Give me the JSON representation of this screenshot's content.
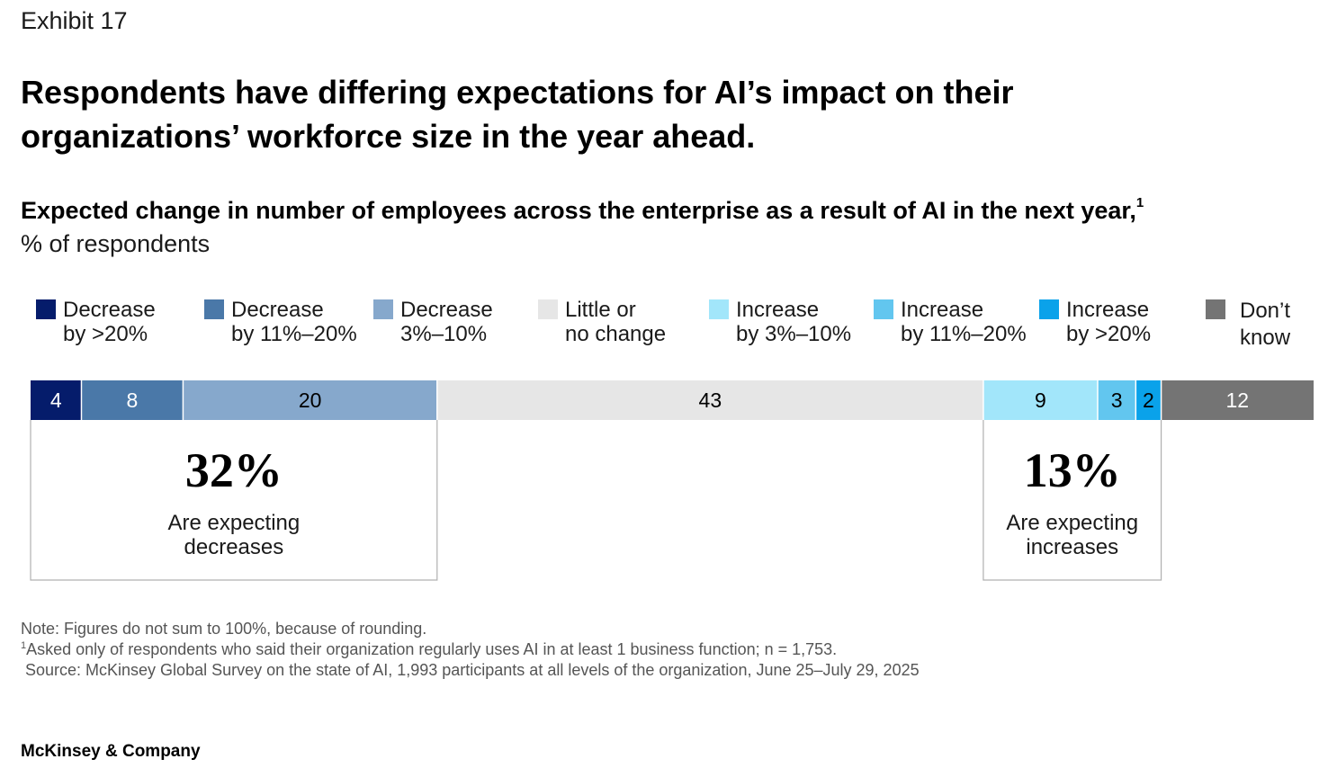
{
  "header": {
    "exhibit": "Exhibit 17",
    "title": "Respondents have differing expectations for AI’s impact on their organizations’ workforce size in the year ahead.",
    "subtitle": "Expected change in number of employees across the enterprise as a result of AI in the next year,",
    "subtitle_footnote": "1",
    "unit": "% of respondents"
  },
  "chart_data": {
    "type": "bar",
    "orientation": "horizontal-stacked",
    "title": "Expected change in number of employees across the enterprise as a result of AI in the next year",
    "ylabel": "% of respondents",
    "series": [
      {
        "name": "Decrease by >20%",
        "label": "Decrease\nby >20%",
        "value": 4,
        "color": "#051c6b",
        "text_color": "#ffffff"
      },
      {
        "name": "Decrease by 11%–20%",
        "label": "Decrease\nby 11%–20%",
        "value": 8,
        "color": "#4a78a8",
        "text_color": "#ffffff"
      },
      {
        "name": "Decrease 3%–10%",
        "label": "Decrease\n3%–10%",
        "value": 20,
        "color": "#86a8cc",
        "text_color": "#000000"
      },
      {
        "name": "Little or no change",
        "label": "Little or\nno change",
        "value": 43,
        "color": "#e6e6e6",
        "text_color": "#000000"
      },
      {
        "name": "Increase by 3%–10%",
        "label": "Increase\nby 3%–10%",
        "value": 9,
        "color": "#a2e6fa",
        "text_color": "#000000"
      },
      {
        "name": "Increase by 11%–20%",
        "label": "Increase\nby 11%–20%",
        "value": 3,
        "color": "#62c6ef",
        "text_color": "#000000"
      },
      {
        "name": "Increase by >20%",
        "label": "Increase\nby >20%",
        "value": 2,
        "color": "#0aa2ea",
        "text_color": "#000000"
      },
      {
        "name": "Don’t know",
        "label": "Don’t\nknow",
        "value": 12,
        "color": "#747474",
        "text_color": "#ffffff"
      }
    ],
    "callouts": [
      {
        "value": "32%",
        "text": "Are expecting\ndecreases"
      },
      {
        "value": "13%",
        "text": "Are expecting\nincreases"
      }
    ]
  },
  "notes": {
    "note": "Note: Figures do not sum to 100%, because of rounding.",
    "footnote_marker": "1",
    "footnote": "Asked only of respondents who said their organization regularly uses AI in at least 1 business function; n = 1,753.",
    "source": " Source: McKinsey Global Survey on the state of AI, 1,993 participants at all levels of the organization, June 25–July 29, 2025"
  },
  "footer": {
    "brand": "McKinsey & Company"
  }
}
